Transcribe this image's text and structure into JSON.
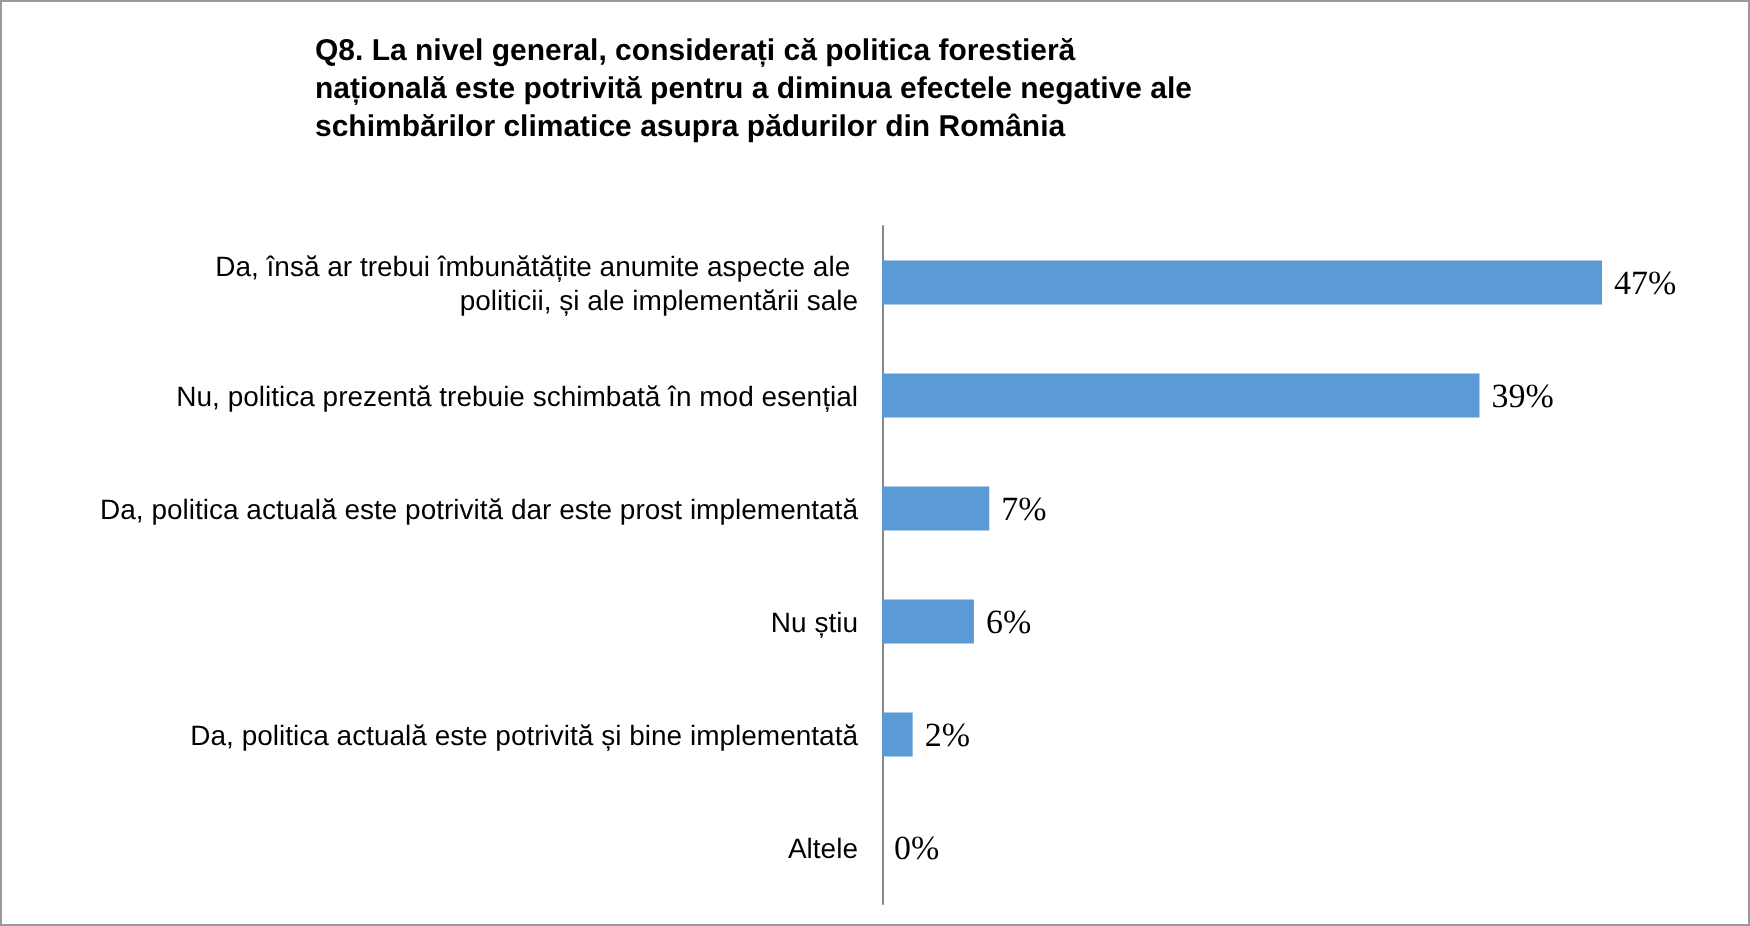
{
  "chart_data": {
    "type": "bar",
    "orientation": "horizontal",
    "title": "Q8. La nivel general, considerați că politica forestieră națională este potrivită pentru a diminua efectele negative ale schimbărilor climatice asupra pădurilor din România",
    "categories": [
      "Da, însă ar trebui îmbunătățite anumite aspecte ale politicii, și ale implementării sale",
      "Nu, politica prezentă trebuie schimbată în mod esențial",
      "Da, politica actuală este potrivită dar este prost implementată",
      "Nu știu",
      "Da, politica actuală este potrivită și bine implementată",
      "Altele"
    ],
    "values": [
      47,
      39,
      7,
      6,
      2,
      0
    ],
    "value_labels": [
      "47%",
      "39%",
      "7%",
      "6%",
      "2%",
      "0%"
    ],
    "color": "#5b9bd5"
  }
}
